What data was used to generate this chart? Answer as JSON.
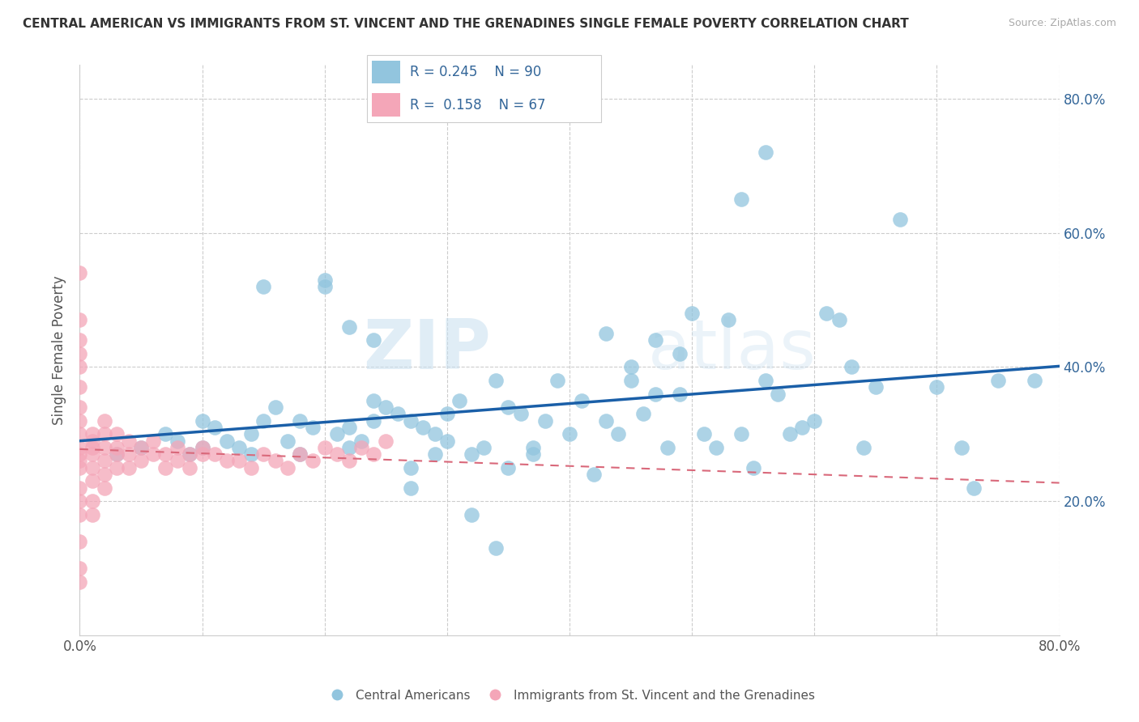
{
  "title": "CENTRAL AMERICAN VS IMMIGRANTS FROM ST. VINCENT AND THE GRENADINES SINGLE FEMALE POVERTY CORRELATION CHART",
  "source": "Source: ZipAtlas.com",
  "ylabel": "Single Female Poverty",
  "xlim": [
    0.0,
    0.8
  ],
  "ylim": [
    0.0,
    0.85
  ],
  "ytick_positions": [
    0.2,
    0.4,
    0.6,
    0.8
  ],
  "ytick_labels": [
    "20.0%",
    "40.0%",
    "60.0%",
    "80.0%"
  ],
  "watermark_zip": "ZIP",
  "watermark_atlas": "atlas",
  "legend_r1": "R = 0.245",
  "legend_n1": "N = 90",
  "legend_r2": "R =  0.158",
  "legend_n2": "N = 67",
  "color_blue": "#92c5de",
  "color_pink": "#f4a6b8",
  "trendline_blue": "#1a5fa8",
  "trendline_pink": "#d9687a",
  "background": "#ffffff",
  "blue_x": [
    0.03,
    0.05,
    0.07,
    0.08,
    0.09,
    0.1,
    0.1,
    0.11,
    0.12,
    0.13,
    0.14,
    0.14,
    0.15,
    0.16,
    0.17,
    0.18,
    0.18,
    0.19,
    0.2,
    0.21,
    0.22,
    0.22,
    0.23,
    0.24,
    0.24,
    0.25,
    0.26,
    0.27,
    0.27,
    0.28,
    0.29,
    0.3,
    0.3,
    0.31,
    0.32,
    0.33,
    0.34,
    0.35,
    0.36,
    0.37,
    0.38,
    0.39,
    0.4,
    0.41,
    0.42,
    0.43,
    0.44,
    0.45,
    0.46,
    0.47,
    0.48,
    0.49,
    0.5,
    0.51,
    0.52,
    0.53,
    0.54,
    0.55,
    0.56,
    0.57,
    0.58,
    0.59,
    0.6,
    0.61,
    0.62,
    0.63,
    0.64,
    0.65,
    0.67,
    0.7,
    0.72,
    0.73,
    0.75,
    0.43,
    0.45,
    0.47,
    0.49,
    0.27,
    0.29,
    0.2,
    0.22,
    0.24,
    0.35,
    0.37,
    0.32,
    0.34,
    0.54,
    0.56,
    0.78,
    0.15
  ],
  "blue_y": [
    0.27,
    0.28,
    0.3,
    0.29,
    0.27,
    0.32,
    0.28,
    0.31,
    0.29,
    0.28,
    0.3,
    0.27,
    0.32,
    0.34,
    0.29,
    0.27,
    0.32,
    0.31,
    0.52,
    0.3,
    0.31,
    0.28,
    0.29,
    0.32,
    0.35,
    0.34,
    0.33,
    0.22,
    0.32,
    0.31,
    0.3,
    0.29,
    0.33,
    0.35,
    0.27,
    0.28,
    0.38,
    0.34,
    0.33,
    0.28,
    0.32,
    0.38,
    0.3,
    0.35,
    0.24,
    0.32,
    0.3,
    0.38,
    0.33,
    0.36,
    0.28,
    0.36,
    0.48,
    0.3,
    0.28,
    0.47,
    0.3,
    0.25,
    0.38,
    0.36,
    0.3,
    0.31,
    0.32,
    0.48,
    0.47,
    0.4,
    0.28,
    0.37,
    0.62,
    0.37,
    0.28,
    0.22,
    0.38,
    0.45,
    0.4,
    0.44,
    0.42,
    0.25,
    0.27,
    0.53,
    0.46,
    0.44,
    0.25,
    0.27,
    0.18,
    0.13,
    0.65,
    0.72,
    0.38,
    0.52
  ],
  "pink_x": [
    0.0,
    0.0,
    0.0,
    0.0,
    0.0,
    0.0,
    0.0,
    0.0,
    0.0,
    0.0,
    0.0,
    0.0,
    0.0,
    0.0,
    0.0,
    0.0,
    0.0,
    0.0,
    0.01,
    0.01,
    0.01,
    0.01,
    0.01,
    0.01,
    0.01,
    0.01,
    0.02,
    0.02,
    0.02,
    0.02,
    0.02,
    0.02,
    0.03,
    0.03,
    0.03,
    0.03,
    0.04,
    0.04,
    0.04,
    0.05,
    0.05,
    0.06,
    0.06,
    0.07,
    0.07,
    0.08,
    0.08,
    0.09,
    0.09,
    0.1,
    0.1,
    0.11,
    0.12,
    0.13,
    0.14,
    0.15,
    0.16,
    0.17,
    0.18,
    0.19,
    0.2,
    0.21,
    0.22,
    0.23,
    0.24,
    0.25,
    0.0
  ],
  "pink_y": [
    0.54,
    0.47,
    0.44,
    0.42,
    0.4,
    0.37,
    0.34,
    0.32,
    0.3,
    0.28,
    0.27,
    0.26,
    0.25,
    0.22,
    0.2,
    0.18,
    0.14,
    0.1,
    0.3,
    0.29,
    0.28,
    0.27,
    0.25,
    0.23,
    0.2,
    0.18,
    0.32,
    0.3,
    0.28,
    0.26,
    0.24,
    0.22,
    0.3,
    0.28,
    0.27,
    0.25,
    0.29,
    0.27,
    0.25,
    0.28,
    0.26,
    0.29,
    0.27,
    0.27,
    0.25,
    0.28,
    0.26,
    0.27,
    0.25,
    0.28,
    0.27,
    0.27,
    0.26,
    0.26,
    0.25,
    0.27,
    0.26,
    0.25,
    0.27,
    0.26,
    0.28,
    0.27,
    0.26,
    0.28,
    0.27,
    0.29,
    0.08
  ]
}
